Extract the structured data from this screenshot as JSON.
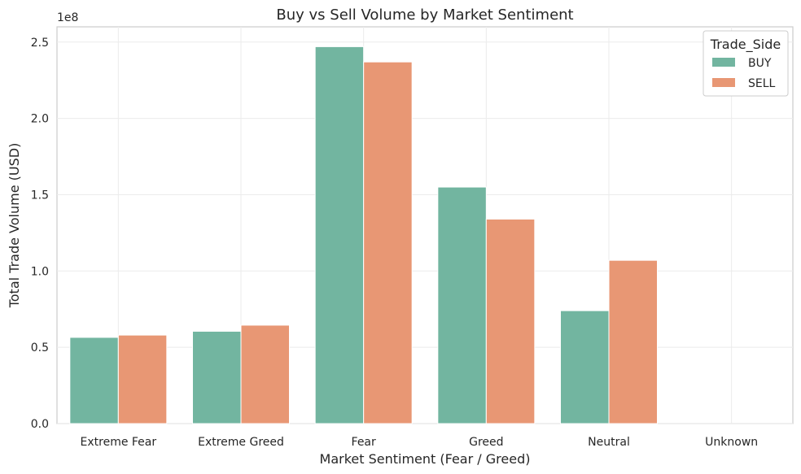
{
  "chart_data": {
    "type": "bar",
    "title": "Buy vs Sell Volume by Market Sentiment",
    "xlabel": "Market Sentiment (Fear / Greed)",
    "ylabel": "Total Trade Volume (USD)",
    "y_multiplier_label": "1e8",
    "categories": [
      "Extreme Fear",
      "Extreme Greed",
      "Fear",
      "Greed",
      "Neutral",
      "Unknown"
    ],
    "ylim": [
      0,
      2.6
    ],
    "yticks": [
      0.0,
      0.5,
      1.0,
      1.5,
      2.0,
      2.5
    ],
    "ytick_labels": [
      "0.0",
      "0.5",
      "1.0",
      "1.5",
      "2.0",
      "2.5"
    ],
    "grid": true,
    "legend": {
      "title": "Trade_Side",
      "position": "top-right"
    },
    "series": [
      {
        "name": "BUY",
        "color": "#72b5a0",
        "values": [
          0.565,
          0.605,
          2.47,
          1.55,
          0.74,
          0
        ]
      },
      {
        "name": "SELL",
        "color": "#e89774",
        "values": [
          0.58,
          0.645,
          2.37,
          1.34,
          1.07,
          0
        ]
      }
    ]
  }
}
